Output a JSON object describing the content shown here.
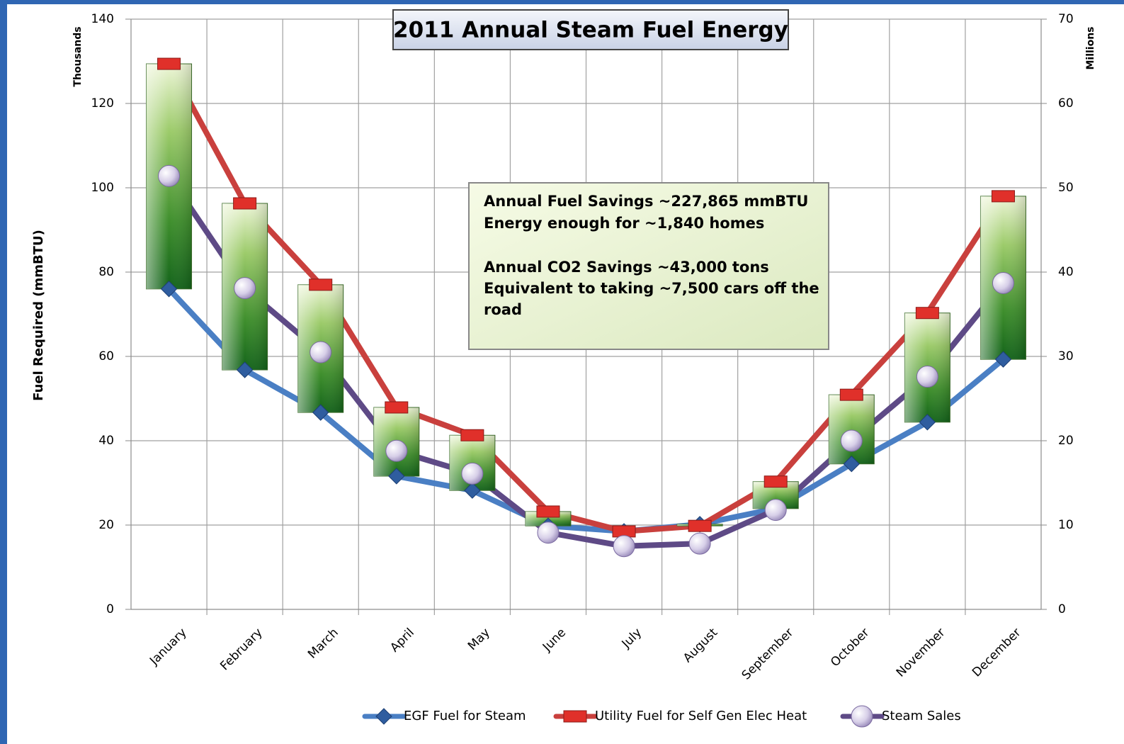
{
  "chart_data": {
    "type": "line",
    "title": "2011 Annual Steam Fuel Energy",
    "y_label": "Fuel Required (mmBTU)",
    "y_unit_label": "Thousands",
    "y2_unit_label": "Millions",
    "categories": [
      "January",
      "February",
      "March",
      "April",
      "May",
      "June",
      "July",
      "August",
      "September",
      "October",
      "November",
      "December"
    ],
    "series": [
      {
        "name": "EGF Fuel for Steam",
        "color": "#4a7fc4",
        "marker": "diamond",
        "values": [
          76,
          56.8,
          46.7,
          31.6,
          28.2,
          19.8,
          18.5,
          20.2,
          23.9,
          34.5,
          44.4,
          59.3
        ]
      },
      {
        "name": "Utility  Fuel for Self Gen Elec Heat",
        "color": "#c9403d",
        "marker": "square",
        "values": [
          129.4,
          96.3,
          77,
          47.9,
          41.3,
          23.2,
          18.5,
          19.8,
          30.3,
          50.9,
          70.3,
          98
        ]
      },
      {
        "name": "Steam Sales",
        "color": "#5e4a86",
        "marker": "circle",
        "axis": "y2",
        "values": [
          51.4,
          38.1,
          30.5,
          18.8,
          16.1,
          9.1,
          7.5,
          7.8,
          11.8,
          20,
          27.6,
          38.7
        ]
      }
    ],
    "up_down_bars": true,
    "ylim": [
      0,
      140
    ],
    "yticks": [
      0,
      20,
      40,
      60,
      80,
      100,
      120,
      140
    ],
    "y2lim": [
      0,
      70
    ],
    "y2ticks": [
      0,
      10,
      20,
      30,
      40,
      50,
      60,
      70
    ],
    "grid": true,
    "legend": "bottom",
    "annotation": [
      "Annual  Fuel Savings ~227,865 mmBTU",
      "Energy enough for ~1,840 homes",
      "Annual CO2 Savings ~43,000 tons",
      "Equivalent to taking ~7,500 cars off the",
      "road"
    ]
  }
}
